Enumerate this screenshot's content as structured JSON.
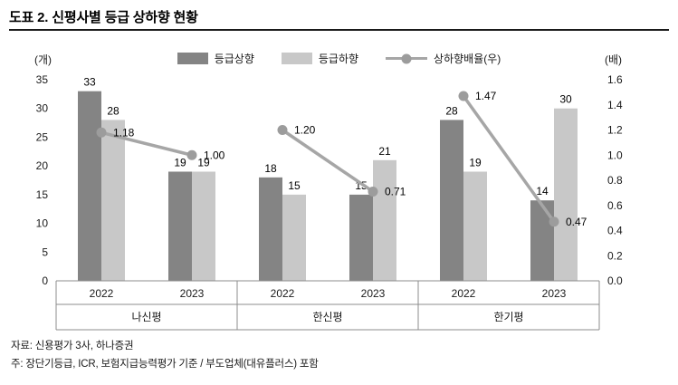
{
  "title": "도표 2. 신평사별 등급 상하향 현황",
  "axis_units": {
    "left": "(개)",
    "right": "(배)"
  },
  "legend": {
    "up": "등급상향",
    "down": "등급하향",
    "ratio": "상하향배율(우)"
  },
  "colors": {
    "up": "#848484",
    "down": "#c8c8c8",
    "line": "#a6a6a6",
    "marker": "#9c9c9c"
  },
  "footnotes": {
    "source": "자료: 신용평가 3사, 하나증권",
    "note": "주: 장단기등급, ICR, 보험지급능력평가 기준 / 부도업체(대유플러스) 포함"
  },
  "chart_data": {
    "type": "bar+line combo",
    "title": "신평사별 등급 상하향 현황",
    "groups": [
      "나신평",
      "한신평",
      "한기평"
    ],
    "categories": [
      "2022",
      "2023",
      "2022",
      "2023",
      "2022",
      "2023"
    ],
    "series": [
      {
        "name": "등급상향",
        "type": "bar",
        "axis": "left",
        "values": [
          33,
          19,
          18,
          15,
          28,
          14
        ]
      },
      {
        "name": "등급하향",
        "type": "bar",
        "axis": "left",
        "values": [
          28,
          19,
          15,
          21,
          19,
          30
        ]
      },
      {
        "name": "상하향배율(우)",
        "type": "line",
        "axis": "right",
        "values": [
          1.18,
          1.0,
          1.2,
          0.71,
          1.47,
          0.47
        ],
        "labels": [
          "1.18",
          "1.00",
          "1.20",
          "0.71",
          "1.47",
          "0.47"
        ]
      }
    ],
    "left_axis": {
      "unit": "(개)",
      "min": 0,
      "max": 35,
      "step": 5
    },
    "right_axis": {
      "unit": "(배)",
      "min": 0.0,
      "max": 1.6,
      "step": 0.2
    },
    "grid": false,
    "legend_position": "top"
  }
}
